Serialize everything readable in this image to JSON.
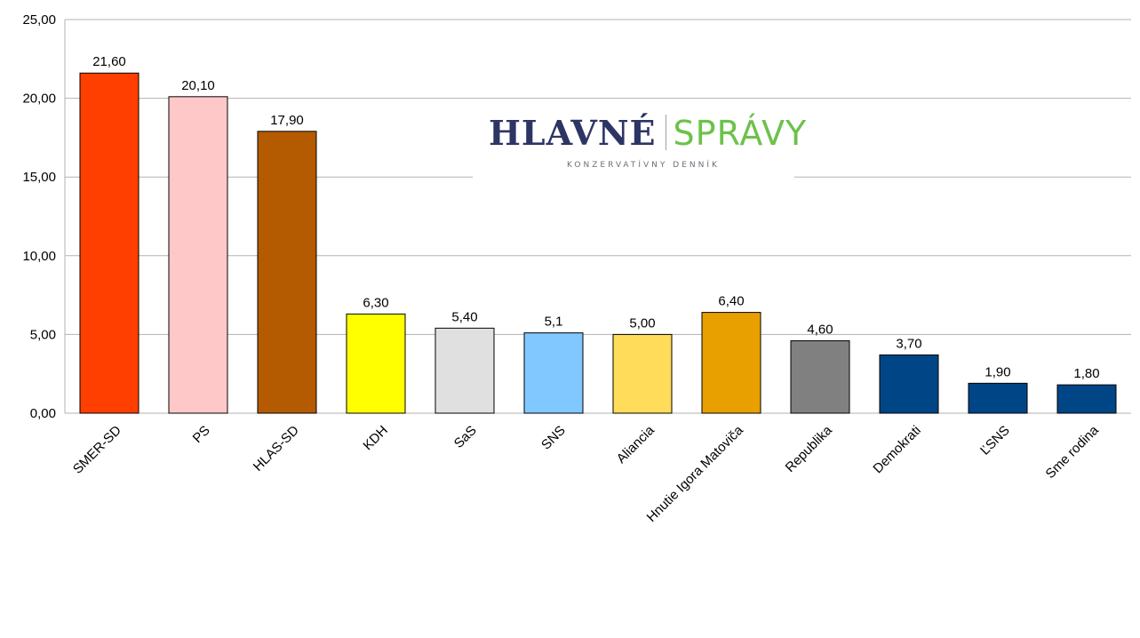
{
  "logo": {
    "left_word": "HLAVNÉ",
    "right_word": "SPRÁVY",
    "tagline": "KONZERVATÍVNY DENNÍK",
    "left_color": "#2c3563",
    "right_color": "#6cc24a"
  },
  "chart_data": {
    "type": "bar",
    "title": "",
    "xlabel": "",
    "ylabel": "",
    "ylim": [
      0,
      25
    ],
    "grid": true,
    "legend": "none",
    "y_ticks": [
      "0,00",
      "5,00",
      "10,00",
      "15,00",
      "20,00",
      "25,00"
    ],
    "categories": [
      "SMER-SD",
      "PS",
      "HLAS-SD",
      "KDH",
      "SaS",
      "SNS",
      "Aliancia",
      "Hnutie Igora Matoviča",
      "Republika",
      "Demokrati",
      "ĽSNS",
      "Sme rodina"
    ],
    "values": [
      21.6,
      20.1,
      17.9,
      6.3,
      5.4,
      5.1,
      5.0,
      6.4,
      4.6,
      3.7,
      1.9,
      1.8
    ],
    "value_labels": [
      "21,60",
      "20,10",
      "17,90",
      "6,30",
      "5,40",
      "5,1",
      "5,00",
      "6,40",
      "4,60",
      "3,70",
      "1,90",
      "1,80"
    ],
    "colors": [
      "#ff3f00",
      "#ffc8c8",
      "#b45a00",
      "#ffff00",
      "#e0e0e0",
      "#80c8ff",
      "#ffdc5a",
      "#e8a000",
      "#808080",
      "#004586",
      "#004586",
      "#004586"
    ]
  }
}
